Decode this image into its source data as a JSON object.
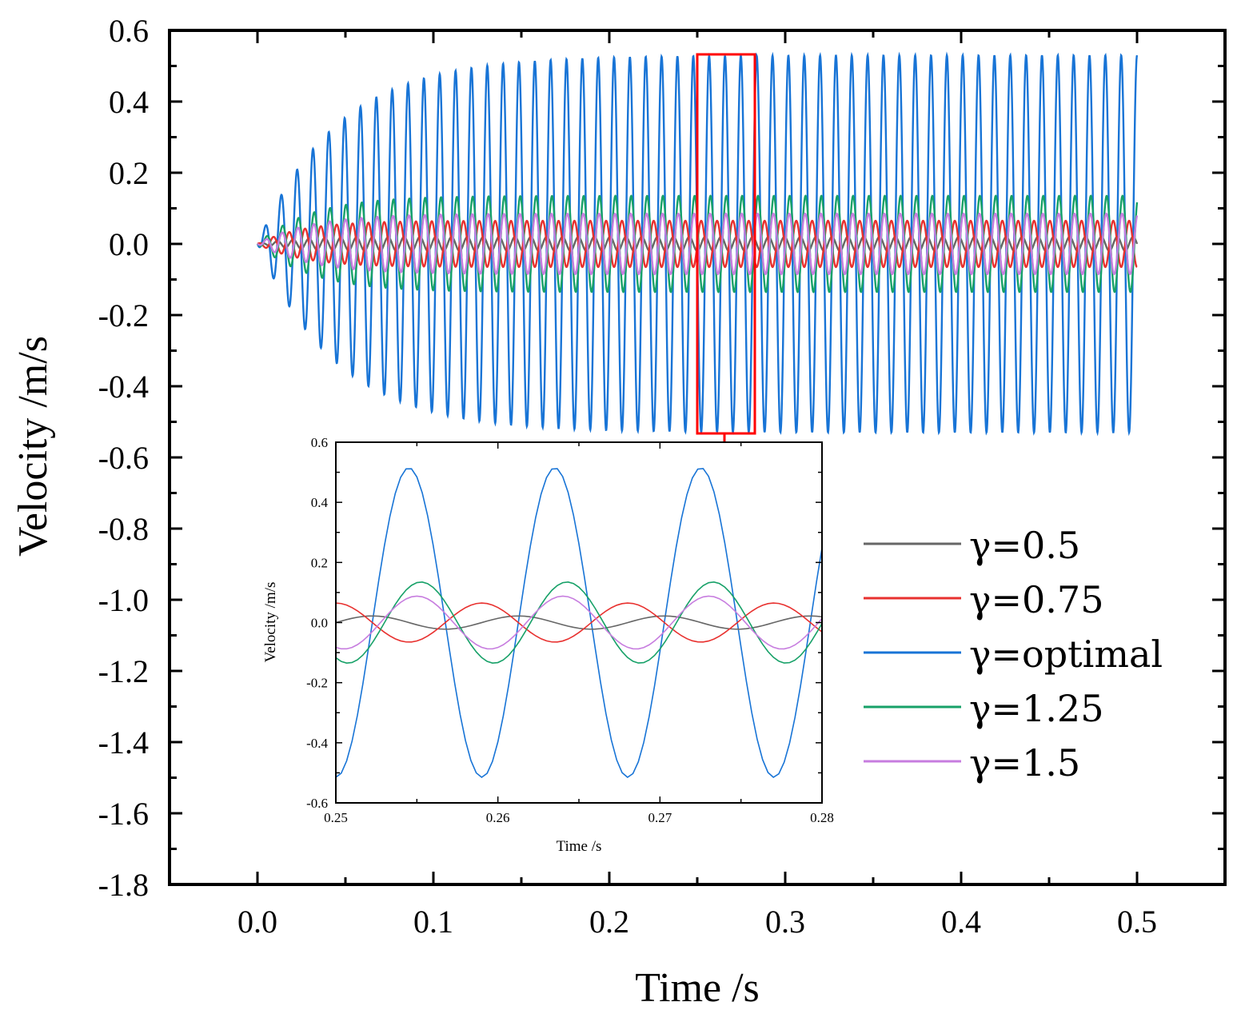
{
  "chart_data": [
    {
      "id": "main",
      "type": "line",
      "xlabel": "Time /s",
      "ylabel": "Velocity /m/s",
      "xlim": [
        -0.05,
        0.55
      ],
      "ylim": [
        -1.8,
        0.6
      ],
      "xticks": [
        0.0,
        0.1,
        0.2,
        0.3,
        0.4,
        0.5
      ],
      "xtick_labels": [
        "0.0",
        "0.1",
        "0.2",
        "0.3",
        "0.4",
        "0.5"
      ],
      "yticks": [
        0.6,
        0.4,
        0.2,
        0.0,
        -0.2,
        -0.4,
        -0.6,
        -0.8,
        -1.0,
        -1.2,
        -1.4,
        -1.6,
        -1.8
      ],
      "ytick_labels": [
        "0.6",
        "0.4",
        "0.2",
        "0.0",
        "-0.2",
        "-0.4",
        "-0.6",
        "-0.8",
        "-1.0",
        "-1.2",
        "-1.4",
        "-1.6",
        "-1.8"
      ],
      "t_range": [
        0.0,
        0.5
      ],
      "frequency_hz": 111,
      "zoom_box": {
        "x": [
          0.25,
          0.282
        ],
        "y": [
          -0.53,
          0.53
        ]
      },
      "series": [
        {
          "name": "γ=0.5",
          "color": "#666666",
          "amplitude": 0.02,
          "phase_deg": 0,
          "rise_time_s": 0.02
        },
        {
          "name": "γ=0.75",
          "color": "#e8312f",
          "amplitude": 0.065,
          "phase_deg": 90,
          "rise_time_s": 0.025
        },
        {
          "name": "γ=optimal",
          "color": "#1874d6",
          "amplitude": 0.53,
          "phase_deg": 270,
          "rise_time_s": 0.045
        },
        {
          "name": "γ=1.25",
          "color": "#17a168",
          "amplitude": 0.135,
          "phase_deg": 240,
          "rise_time_s": 0.03
        },
        {
          "name": "γ=1.5",
          "color": "#c77ddf",
          "amplitude": 0.085,
          "phase_deg": 250,
          "rise_time_s": 0.03
        }
      ]
    },
    {
      "id": "inset",
      "type": "line",
      "xlabel": "Time /s",
      "ylabel": "Velocity /m/s",
      "xlim": [
        0.25,
        0.28
      ],
      "ylim": [
        -0.6,
        0.6
      ],
      "xticks": [
        0.25,
        0.26,
        0.27,
        0.28
      ],
      "xtick_labels": [
        "0.25",
        "0.26",
        "0.27",
        "0.28"
      ],
      "yticks": [
        0.6,
        0.4,
        0.2,
        0.0,
        -0.2,
        -0.4,
        -0.6
      ],
      "ytick_labels": [
        "0.6",
        "0.4",
        "0.2",
        "0.0",
        "-0.2",
        "-0.4",
        "-0.6"
      ],
      "frequency_hz": 111,
      "series": [
        {
          "name": "γ=0.5",
          "color": "#666666",
          "amplitude": 0.022,
          "phase_deg": 0
        },
        {
          "name": "γ=0.75",
          "color": "#e8312f",
          "amplitude": 0.065,
          "phase_deg": 90
        },
        {
          "name": "γ=optimal",
          "color": "#1874d6",
          "amplitude": 0.515,
          "phase_deg": 270
        },
        {
          "name": "γ=1.25",
          "color": "#17a168",
          "amplitude": 0.135,
          "phase_deg": 240
        },
        {
          "name": "γ=1.5",
          "color": "#c77ddf",
          "amplitude": 0.088,
          "phase_deg": 250
        }
      ]
    }
  ]
}
